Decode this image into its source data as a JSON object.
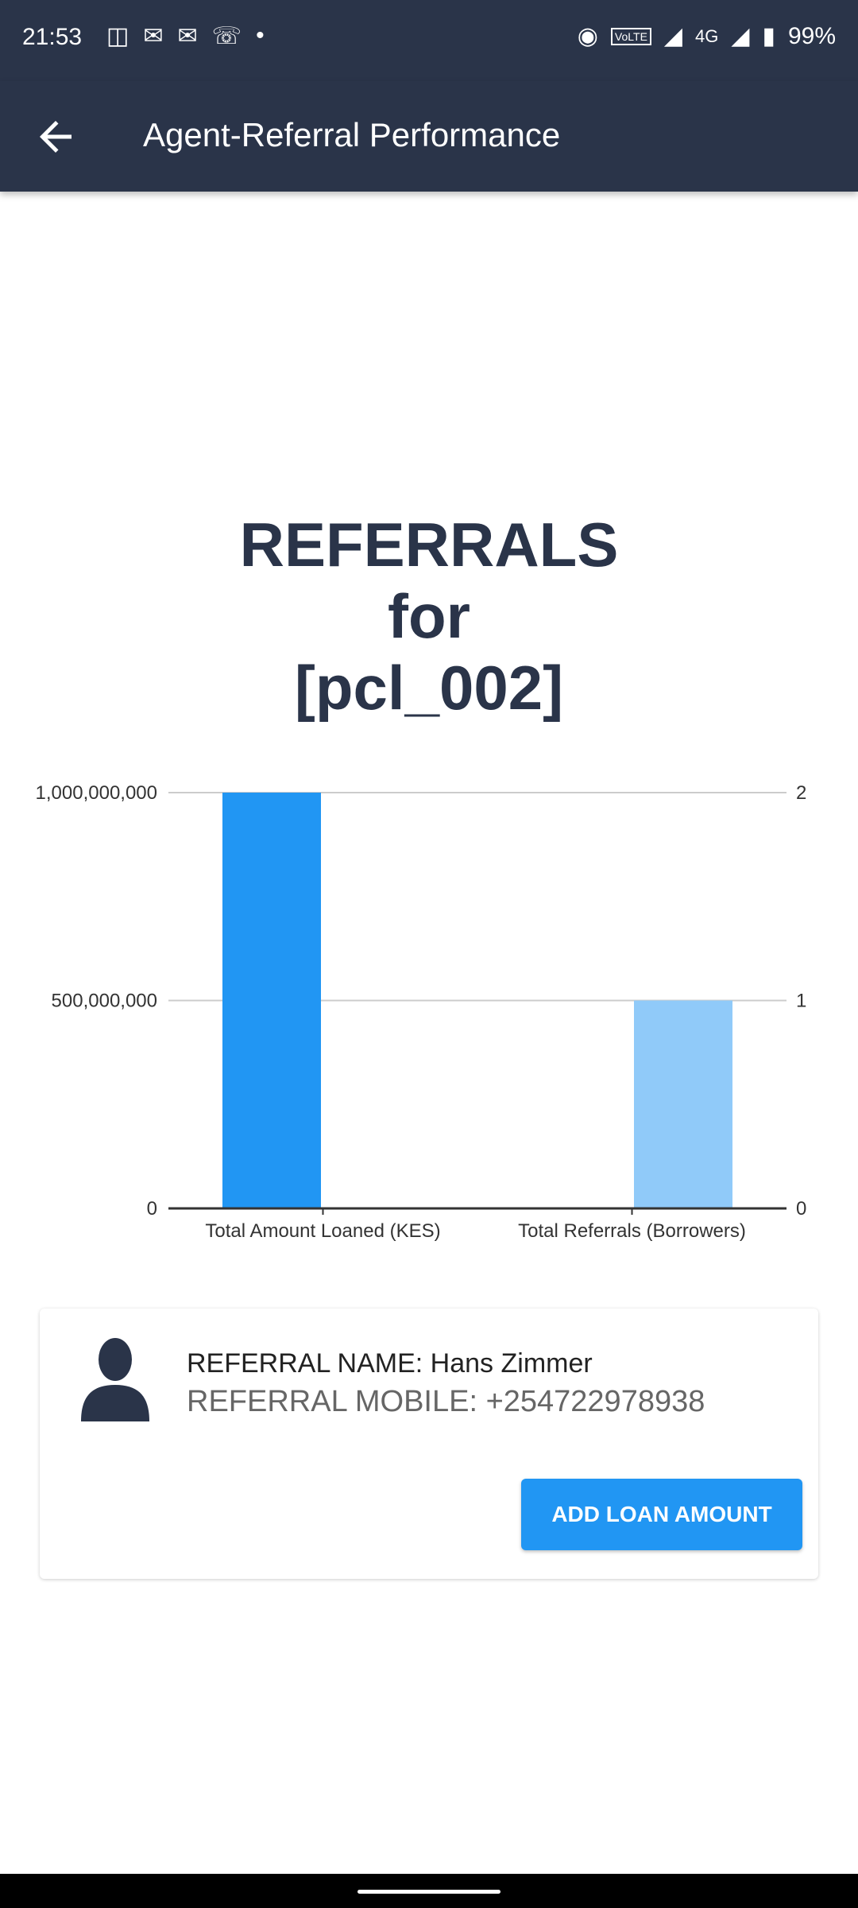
{
  "status_bar": {
    "time": "21:53",
    "network": "4G",
    "volte": "VoLTE",
    "battery": "99%"
  },
  "app_bar": {
    "title": "Agent-Referral Performance"
  },
  "heading": {
    "line1": "REFERRALS",
    "line2": "for",
    "line3": "[pcl_002]"
  },
  "chart_data": {
    "type": "bar",
    "categories": [
      "Total Amount Loaned (KES)",
      "Total Referrals (Borrowers)"
    ],
    "series": [
      {
        "name": "",
        "axis": "left",
        "category": "Total Amount Loaned (KES)",
        "value": 1000000000,
        "color": "#2196f3"
      },
      {
        "name": "",
        "axis": "right",
        "category": "Total Referrals (Borrowers)",
        "value": 1,
        "color": "#90caf9"
      }
    ],
    "left_axis": {
      "ticks": [
        "0",
        "500,000,000",
        "1,000,000,000"
      ],
      "range": [
        0,
        1000000000
      ]
    },
    "right_axis": {
      "ticks": [
        "0",
        "1",
        "2"
      ],
      "range": [
        0,
        2
      ]
    },
    "grid": true
  },
  "card": {
    "referral_name": "REFERRAL NAME: Hans Zimmer",
    "referral_mobile": "REFERRAL MOBILE: +254722978938",
    "button_label": "ADD LOAN AMOUNT"
  }
}
